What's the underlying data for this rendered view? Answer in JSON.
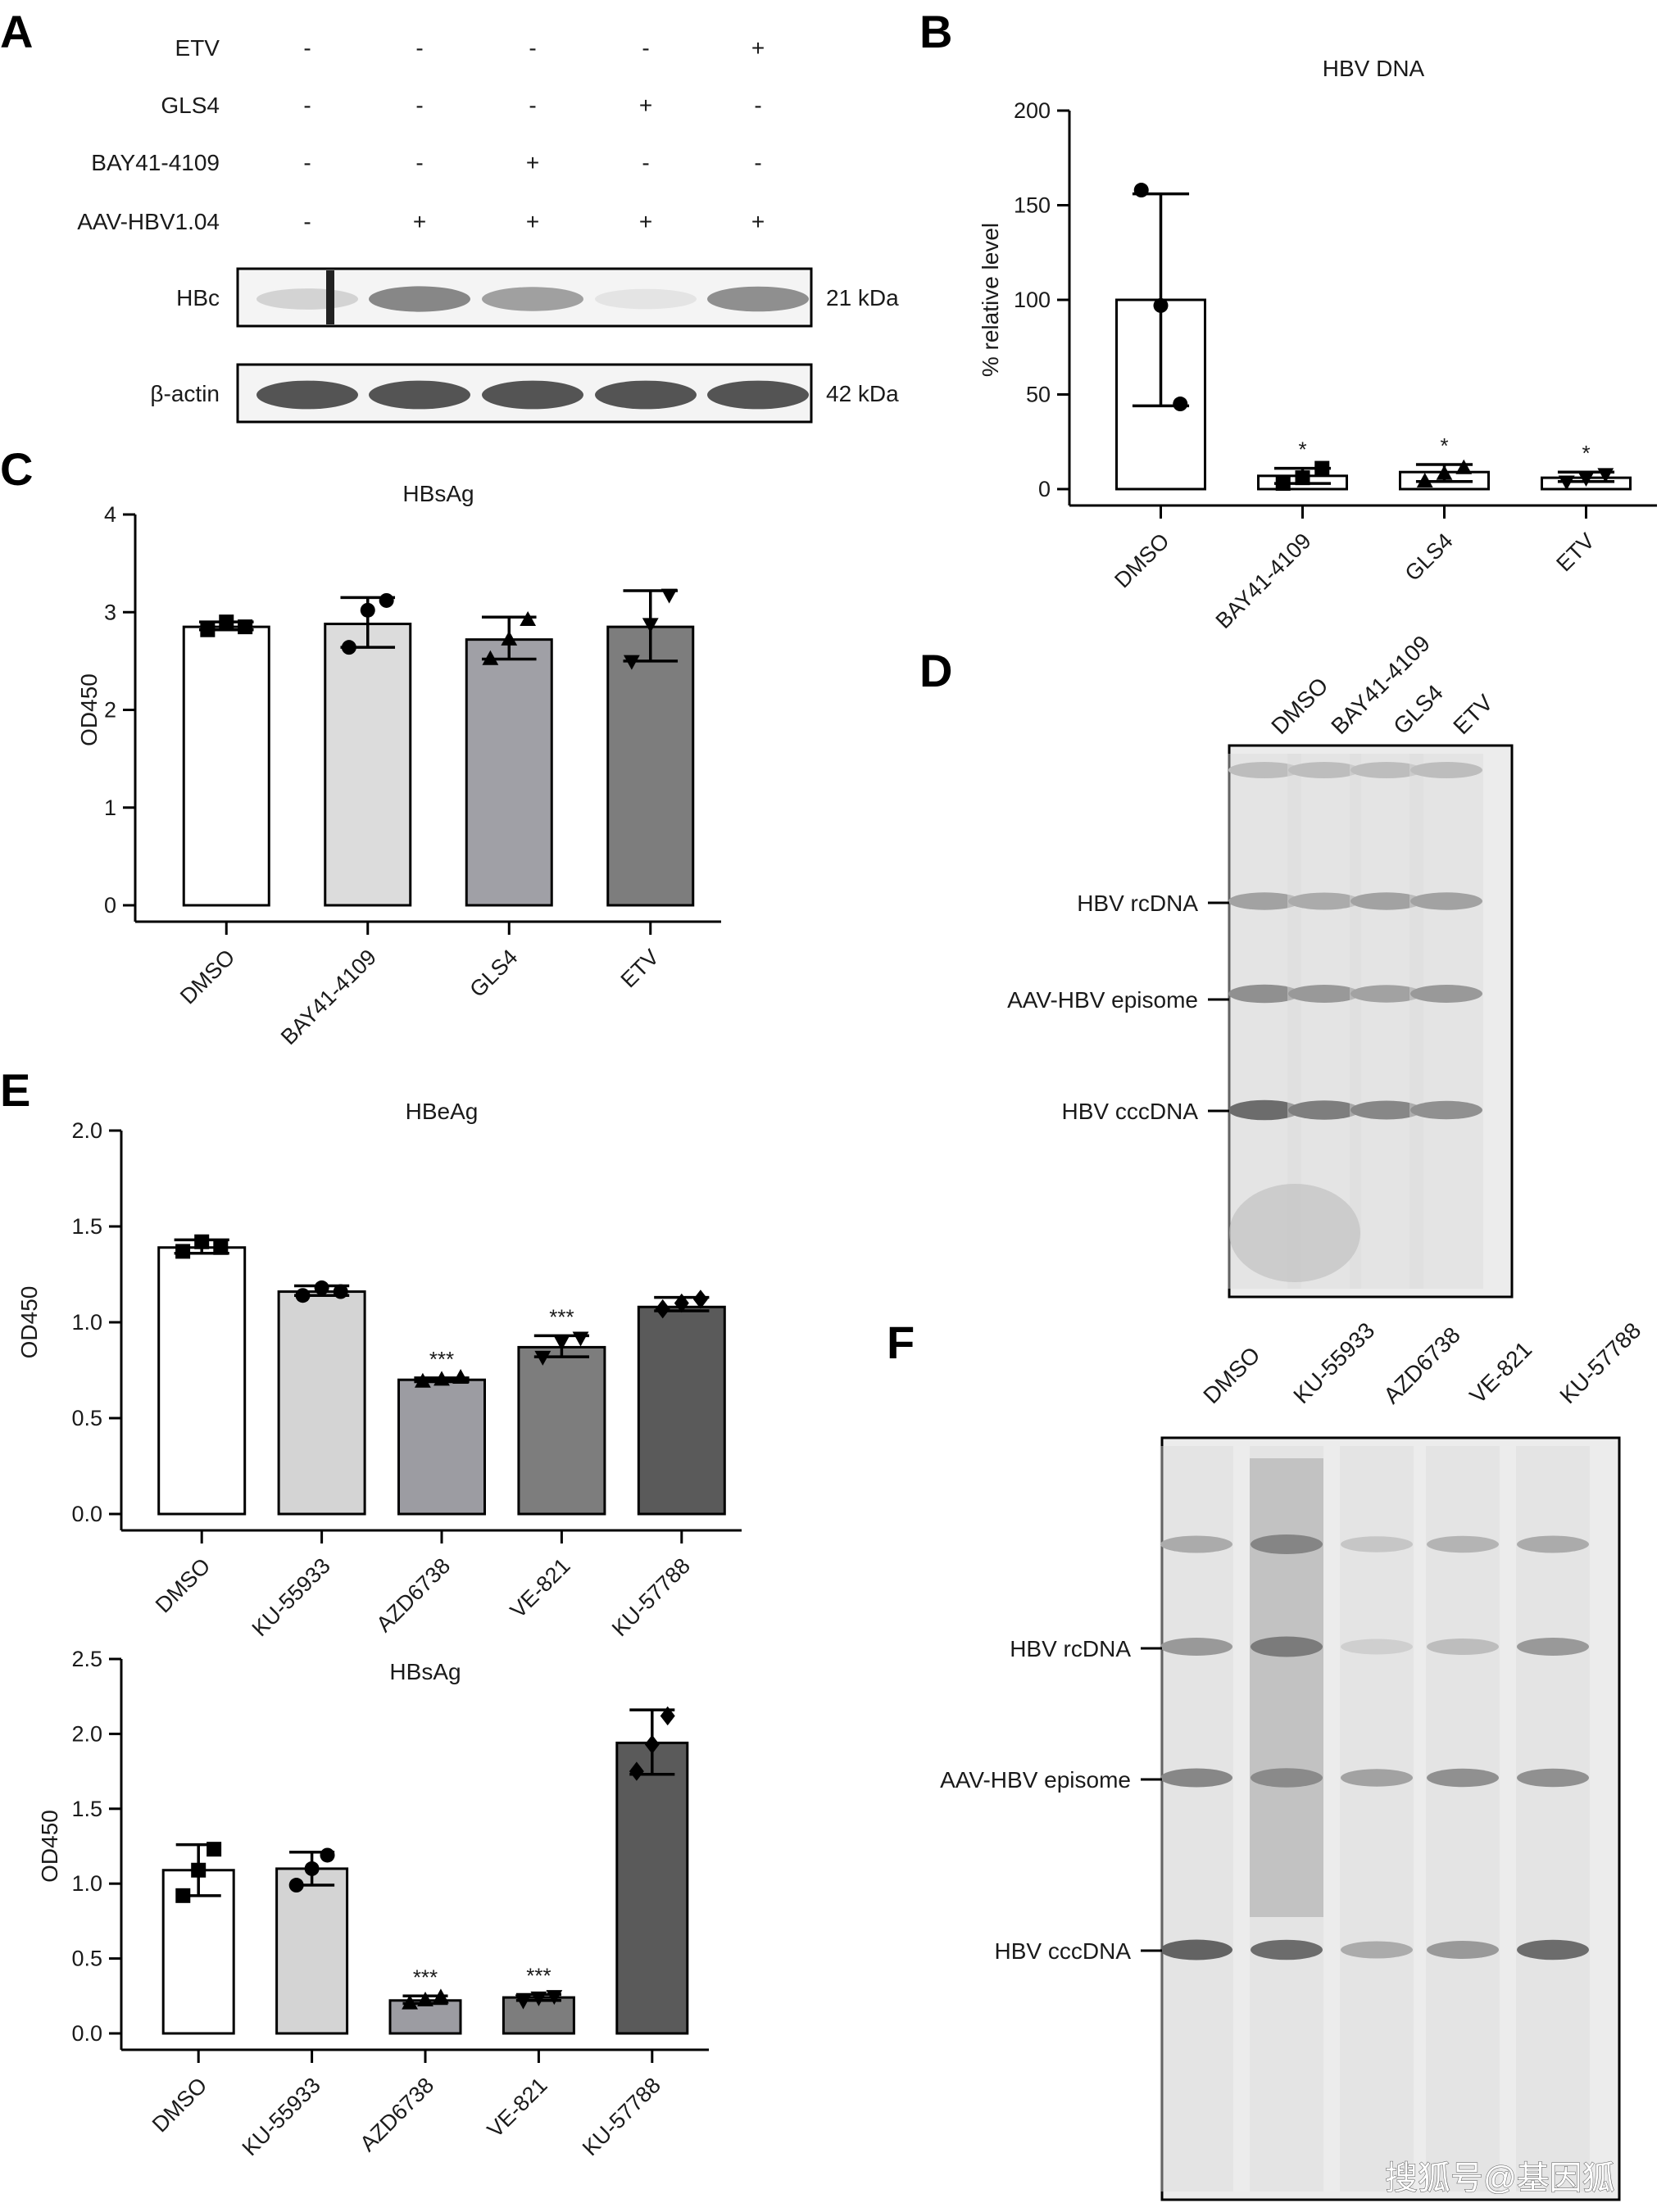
{
  "panels": [
    "A",
    "B",
    "C",
    "D",
    "E",
    "F"
  ],
  "panel_a": {
    "rows": [
      {
        "label": "ETV",
        "signs": [
          "-",
          "-",
          "-",
          "-",
          "+"
        ]
      },
      {
        "label": "GLS4",
        "signs": [
          "-",
          "-",
          "-",
          "+",
          "-"
        ]
      },
      {
        "label": "BAY41-4109",
        "signs": [
          "-",
          "-",
          "+",
          "-",
          "-"
        ]
      },
      {
        "label": "AAV-HBV1.04",
        "signs": [
          "-",
          "+",
          "+",
          "+",
          "+"
        ]
      }
    ],
    "blots": [
      {
        "label": "HBc",
        "size": "21 kDa",
        "intensities": [
          0.15,
          0.6,
          0.45,
          0.05,
          0.55
        ]
      },
      {
        "label": "β-actin",
        "size": "42 kDa",
        "intensities": [
          0.9,
          0.9,
          0.9,
          0.9,
          0.9
        ]
      }
    ]
  },
  "panel_d": {
    "lanes": [
      "DMSO",
      "BAY41-4109",
      "GLS4",
      "ETV"
    ],
    "bands": [
      "HBV rcDNA",
      "AAV-HBV episome",
      "HBV cccDNA"
    ]
  },
  "panel_f": {
    "lanes": [
      "DMSO",
      "KU-55933",
      "AZD6738",
      "VE-821",
      "KU-57788"
    ],
    "bands": [
      "HBV rcDNA",
      "AAV-HBV episome",
      "HBV cccDNA"
    ]
  },
  "watermark": "搜狐号@基因狐",
  "chart_data": [
    {
      "id": "B",
      "type": "bar",
      "title": "HBV DNA",
      "xlabel": "",
      "ylabel": "% relative level",
      "ylim": [
        0,
        200
      ],
      "yticks": [
        0,
        50,
        100,
        150,
        200
      ],
      "categories": [
        "DMSO",
        "BAY41-4109",
        "GLS4",
        "ETV"
      ],
      "values": [
        100,
        7,
        9,
        6
      ],
      "errors": [
        [
          44,
          156
        ],
        [
          3,
          11
        ],
        [
          4,
          13
        ],
        [
          4,
          9
        ]
      ],
      "points": [
        [
          158,
          97,
          45
        ],
        [
          3,
          6,
          11
        ],
        [
          4,
          8,
          11
        ],
        [
          4,
          6,
          8
        ]
      ],
      "markers": [
        "circle",
        "square",
        "triangle",
        "triangle-down"
      ],
      "annotations": [
        "",
        "*",
        "*",
        "*"
      ],
      "colors": [
        "#ffffff",
        "#ffffff",
        "#ffffff",
        "#ffffff"
      ],
      "grid": false
    },
    {
      "id": "C",
      "type": "bar",
      "title": "HBsAg",
      "xlabel": "",
      "ylabel": "OD450",
      "ylim": [
        0,
        4
      ],
      "yticks": [
        0,
        1,
        2,
        3,
        4
      ],
      "categories": [
        "DMSO",
        "BAY41-4109",
        "GLS4",
        "ETV"
      ],
      "values": [
        2.85,
        2.88,
        2.72,
        2.85
      ],
      "errors": [
        [
          2.82,
          2.9
        ],
        [
          2.64,
          3.15
        ],
        [
          2.52,
          2.95
        ],
        [
          2.5,
          3.22
        ]
      ],
      "points": [
        [
          2.82,
          2.9,
          2.85
        ],
        [
          2.64,
          3.02,
          3.12
        ],
        [
          2.52,
          2.72,
          2.92
        ],
        [
          2.5,
          2.88,
          3.18
        ]
      ],
      "markers": [
        "square",
        "circle",
        "triangle",
        "triangle-down"
      ],
      "annotations": [
        "",
        "",
        "",
        ""
      ],
      "colors": [
        "#ffffff",
        "#dcdcdc",
        "#a0a0a6",
        "#7d7d7d"
      ],
      "grid": false
    },
    {
      "id": "E1",
      "type": "bar",
      "title": "HBeAg",
      "xlabel": "",
      "ylabel": "OD450",
      "ylim": [
        0,
        2.0
      ],
      "yticks": [
        0.0,
        0.5,
        1.0,
        1.5,
        2.0
      ],
      "tickdecimals": 1,
      "categories": [
        "DMSO",
        "KU-55933",
        "AZD6738",
        "VE-821",
        "KU-57788"
      ],
      "values": [
        1.39,
        1.16,
        0.7,
        0.87,
        1.08
      ],
      "errors": [
        [
          1.36,
          1.43
        ],
        [
          1.14,
          1.19
        ],
        [
          0.69,
          0.71
        ],
        [
          0.82,
          0.93
        ],
        [
          1.06,
          1.13
        ]
      ],
      "points": [
        [
          1.37,
          1.42,
          1.39
        ],
        [
          1.14,
          1.18,
          1.16
        ],
        [
          0.69,
          0.7,
          0.71
        ],
        [
          0.82,
          0.9,
          0.92
        ],
        [
          1.07,
          1.1,
          1.12
        ]
      ],
      "markers": [
        "square",
        "circle",
        "triangle",
        "triangle-down",
        "diamond"
      ],
      "annotations": [
        "",
        "",
        "***",
        "***",
        ""
      ],
      "colors": [
        "#ffffff",
        "#d4d4d4",
        "#9c9ca2",
        "#7d7d7d",
        "#5a5a5a"
      ],
      "grid": false
    },
    {
      "id": "E2",
      "type": "bar",
      "title": "HBsAg",
      "xlabel": "",
      "ylabel": "OD450",
      "ylim": [
        0,
        2.5
      ],
      "yticks": [
        0.0,
        0.5,
        1.0,
        1.5,
        2.0,
        2.5
      ],
      "tickdecimals": 1,
      "categories": [
        "DMSO",
        "KU-55933",
        "AZD6738",
        "VE-821",
        "KU-57788"
      ],
      "values": [
        1.09,
        1.1,
        0.22,
        0.24,
        1.94
      ],
      "errors": [
        [
          0.92,
          1.26
        ],
        [
          0.99,
          1.21
        ],
        [
          0.2,
          0.25
        ],
        [
          0.22,
          0.26
        ],
        [
          1.73,
          2.16
        ]
      ],
      "points": [
        [
          0.92,
          1.09,
          1.23
        ],
        [
          0.99,
          1.1,
          1.19
        ],
        [
          0.2,
          0.22,
          0.24
        ],
        [
          0.22,
          0.24,
          0.25
        ],
        [
          1.75,
          1.93,
          2.12
        ]
      ],
      "markers": [
        "square",
        "circle",
        "triangle",
        "triangle-down",
        "diamond"
      ],
      "annotations": [
        "",
        "",
        "***",
        "***",
        ""
      ],
      "colors": [
        "#ffffff",
        "#d4d4d4",
        "#9c9ca2",
        "#7d7d7d",
        "#5a5a5a"
      ],
      "grid": false
    }
  ]
}
